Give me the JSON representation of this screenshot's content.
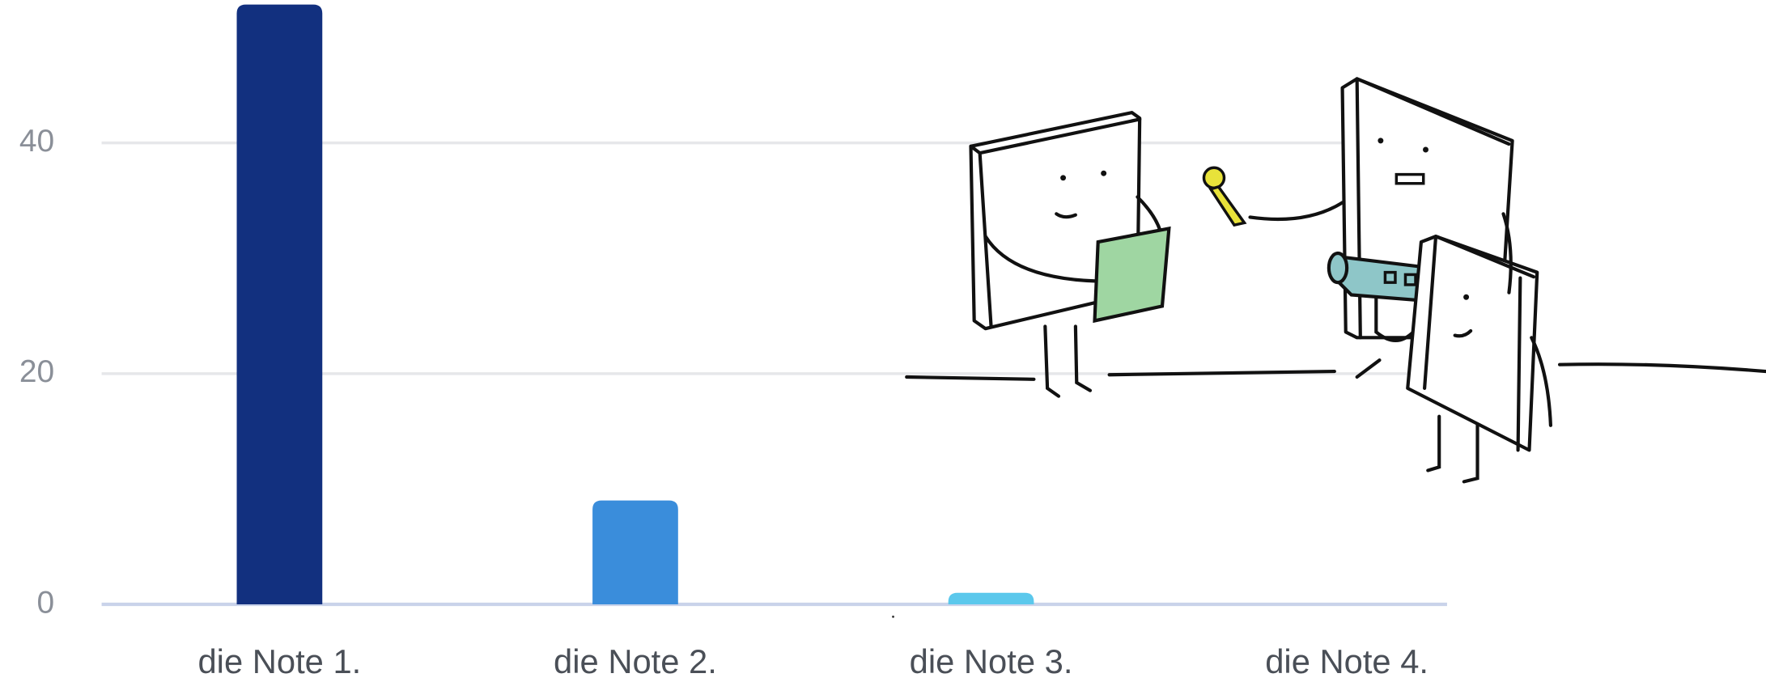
{
  "chart_data": {
    "type": "bar",
    "categories": [
      "die Note 1.",
      "die Note 2.",
      "die Note 3.",
      "die Note 4."
    ],
    "values": [
      52,
      9,
      1,
      0
    ],
    "colors": [
      "#12307f",
      "#3a8ddb",
      "#5bc8ec",
      "#5bc8ec"
    ],
    "ylim": [
      0,
      52
    ],
    "yticks": [
      0,
      20,
      40
    ],
    "grid": true
  }
}
